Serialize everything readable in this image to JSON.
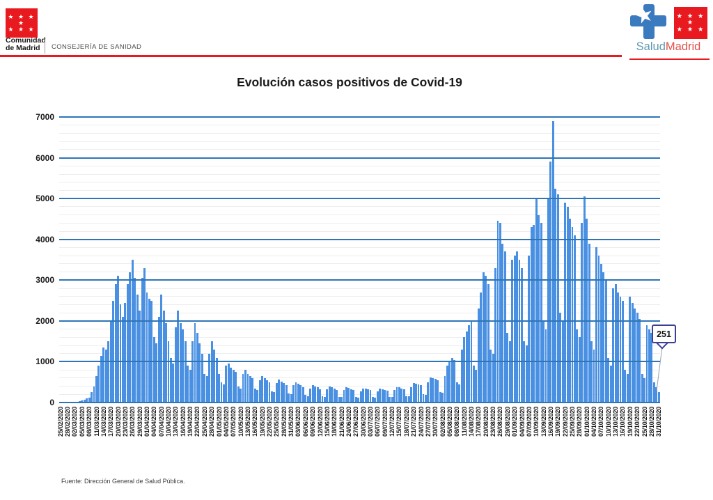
{
  "header": {
    "org_name_line1": "Comunidad",
    "org_name_line2": "de Madrid",
    "department": "CONSEJERÍA DE SANIDAD",
    "flag_stars_row1": "★ ★ ★ ★",
    "flag_stars_row2": "★ ★ ★",
    "brand_salud": "Salud",
    "brand_madrid": "Madrid",
    "colors": {
      "institutional_red": "#e8191f",
      "salud_teal": "#5e9ab3",
      "madrid_red": "#e0524b"
    }
  },
  "annotation": {
    "label": "251"
  },
  "footer": {
    "source": "Fuente: Dirección General de Salud Pública."
  },
  "chart_data": {
    "type": "bar",
    "title": "Evolución casos positivos de Covid-19",
    "xlabel": "",
    "ylabel": "",
    "ylim": [
      0,
      7000
    ],
    "y_ticks": [
      0,
      1000,
      2000,
      3000,
      4000,
      5000,
      6000,
      7000
    ],
    "y_minor_step": 200,
    "grid": "horizontal, major blue + minor light",
    "legend": "none",
    "bar_color": "#4a90e2",
    "major_grid_color": "#2e75b6",
    "minor_grid_color": "#ededed",
    "x_start_date": "25/02/2020",
    "x_end_date": "31/10/2020",
    "x_tick_every_n_days": 3,
    "x_tick_labels": [
      "25/02/2020",
      "28/02/2020",
      "02/03/2020",
      "05/03/2020",
      "08/03/2020",
      "11/03/2020",
      "14/03/2020",
      "17/03/2020",
      "20/03/2020",
      "23/03/2020",
      "26/03/2020",
      "29/03/2020",
      "01/04/2020",
      "04/04/2020",
      "07/04/2020",
      "10/04/2020",
      "13/04/2020",
      "16/04/2020",
      "19/04/2020",
      "22/04/2020",
      "25/04/2020",
      "28/04/2020",
      "01/05/2020",
      "04/05/2020",
      "07/05/2020",
      "10/05/2020",
      "13/05/2020",
      "16/05/2020",
      "19/05/2020",
      "22/05/2020",
      "25/05/2020",
      "28/05/2020",
      "31/05/2020",
      "03/06/2020",
      "06/06/2020",
      "09/06/2020",
      "12/06/2020",
      "15/06/2020",
      "18/06/2020",
      "21/06/2020",
      "24/06/2020",
      "27/06/2020",
      "30/06/2020",
      "03/07/2020",
      "06/07/2020",
      "09/07/2020",
      "12/07/2020",
      "15/07/2020",
      "18/07/2020",
      "21/07/2020",
      "24/07/2020",
      "27/07/2020",
      "30/07/2020",
      "02/08/2020",
      "05/08/2020",
      "08/08/2020",
      "11/08/2020",
      "14/08/2020",
      "17/08/2020",
      "20/08/2020",
      "23/08/2020",
      "26/08/2020",
      "29/08/2020",
      "01/09/2020",
      "04/09/2020",
      "07/09/2020",
      "10/09/2020",
      "13/09/2020",
      "16/09/2020",
      "19/09/2020",
      "22/09/2020",
      "25/09/2020",
      "28/09/2020",
      "01/10/2020",
      "04/10/2020",
      "07/10/2020",
      "10/10/2020",
      "13/10/2020",
      "16/10/2020",
      "19/10/2020",
      "22/10/2020",
      "25/10/2020",
      "28/10/2020",
      "31/10/2020"
    ],
    "values": [
      1,
      1,
      3,
      4,
      6,
      8,
      12,
      18,
      28,
      45,
      70,
      100,
      120,
      250,
      400,
      650,
      900,
      1150,
      1350,
      1300,
      1500,
      2000,
      2500,
      2900,
      3100,
      2400,
      2100,
      2450,
      2900,
      3200,
      3500,
      3050,
      2650,
      2250,
      3050,
      3300,
      2700,
      2550,
      2500,
      1600,
      1450,
      2100,
      2650,
      2250,
      1950,
      1500,
      1100,
      950,
      1850,
      2250,
      1950,
      1800,
      1500,
      900,
      800,
      1500,
      1950,
      1700,
      1450,
      1200,
      700,
      650,
      1200,
      1500,
      1300,
      1100,
      700,
      500,
      450,
      900,
      950,
      850,
      800,
      750,
      400,
      350,
      700,
      800,
      700,
      650,
      600,
      350,
      300,
      550,
      650,
      600,
      550,
      500,
      280,
      250,
      480,
      560,
      520,
      480,
      430,
      220,
      200,
      420,
      500,
      460,
      420,
      380,
      180,
      160,
      350,
      420,
      400,
      370,
      330,
      150,
      140,
      320,
      400,
      380,
      350,
      310,
      140,
      130,
      300,
      380,
      360,
      330,
      300,
      130,
      120,
      280,
      350,
      340,
      320,
      300,
      130,
      120,
      280,
      340,
      330,
      310,
      290,
      140,
      130,
      300,
      380,
      370,
      350,
      330,
      160,
      150,
      380,
      470,
      460,
      440,
      420,
      200,
      190,
      500,
      620,
      600,
      580,
      550,
      260,
      240,
      650,
      900,
      1000,
      1100,
      1050,
      500,
      450,
      1300,
      1600,
      1750,
      1900,
      2000,
      900,
      800,
      2300,
      2700,
      3200,
      3100,
      2900,
      1300,
      1200,
      3300,
      4450,
      4400,
      3900,
      3700,
      1700,
      1500,
      3500,
      3600,
      3700,
      3500,
      3300,
      1500,
      1400,
      3600,
      4300,
      4350,
      5000,
      4600,
      4400,
      2000,
      1800,
      5000,
      5900,
      6900,
      5250,
      5100,
      2200,
      2000,
      4900,
      4800,
      4500,
      4300,
      4100,
      1800,
      1600,
      4400,
      5050,
      4500,
      3900,
      1500,
      1300,
      3800,
      3600,
      3400,
      3200,
      3000,
      1100,
      900,
      2800,
      2900,
      2700,
      2600,
      2500,
      800,
      700,
      2600,
      2450,
      2300,
      2200,
      2050,
      700,
      600,
      1900,
      1800,
      1700,
      500,
      380,
      251
    ],
    "last_value_annotation": "251"
  }
}
